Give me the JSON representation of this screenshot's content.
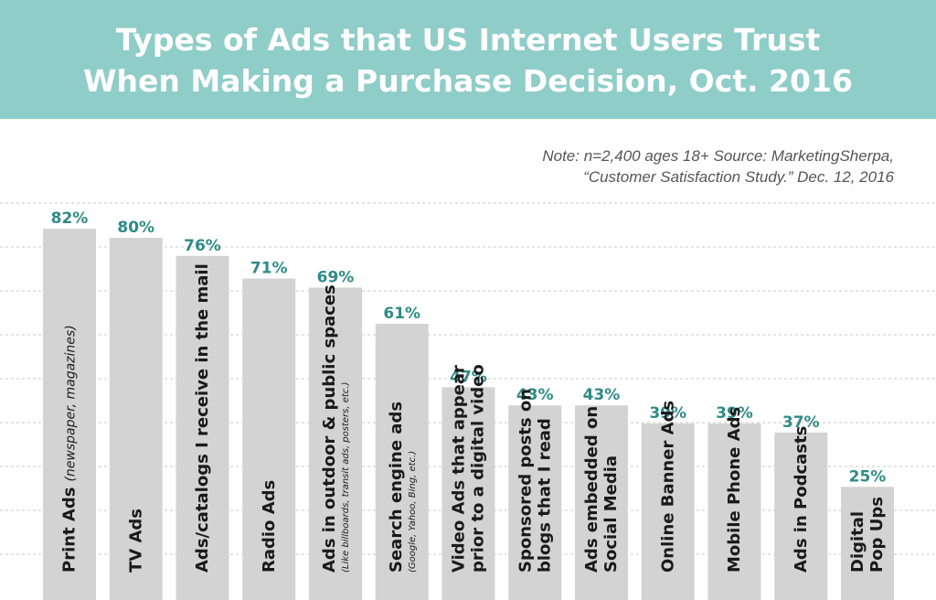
{
  "colors": {
    "header_bg": "#8fcdc9",
    "bar": "#d3d3d3",
    "value_text": "#2e8b86",
    "label_text": "#1a1a1a",
    "grid": "#c8c8c8"
  },
  "note": {
    "line1": "Note: n=2,400 ages 18+ Source: MarketingSherpa,",
    "line2": "“Customer Satisfaction Study.” Dec. 12, 2016"
  },
  "chart_data": {
    "type": "bar",
    "title": "Types of Ads that US Internet Users Trust When Making a Purchase Decision, Oct. 2016",
    "title_lines": [
      "Types of Ads that US Internet Users Trust",
      "When Making a Purchase Decision, Oct. 2016"
    ],
    "grid": true,
    "ylim": [
      0,
      100
    ],
    "categories": [
      "Print Ads (newspaper, magazines)",
      "TV Ads",
      "Ads/catalogs I receive in the mail",
      "Radio Ads",
      "Ads in outdoor & public spaces (Like billboards, transit ads, posters, etc.)",
      "Search engine ads (Google, Yahoo, Bing, etc.)",
      "Video Ads that appear prior to a digital video",
      "Sponsored posts on blogs that I read",
      "Ads embedded on Social Media",
      "Online Banner Ads",
      "Mobile Phone Ads",
      "Ads in Podcasts",
      "Digital Pop Ups"
    ],
    "values": [
      82,
      80,
      76,
      71,
      69,
      61,
      47,
      43,
      43,
      39,
      39,
      37,
      25
    ],
    "value_labels": [
      "82%",
      "80%",
      "76%",
      "71%",
      "69%",
      "61%",
      "47%",
      "43%",
      "43%",
      "39%",
      "39%",
      "37%",
      "25%"
    ],
    "bar_labels": [
      {
        "main": [
          "Print Ads"
        ],
        "sub": [
          "(newspaper, magazines)"
        ],
        "sub_inline": true
      },
      {
        "main": [
          "TV Ads"
        ],
        "sub": []
      },
      {
        "main": [
          "Ads/catalogs I receive in the mail"
        ],
        "sub": []
      },
      {
        "main": [
          "Radio Ads"
        ],
        "sub": []
      },
      {
        "main": [
          "Ads in outdoor & public spaces"
        ],
        "sub": [
          "(Like billboards, transit ads, posters, etc.)"
        ]
      },
      {
        "main": [
          "Search engine ads"
        ],
        "sub": [
          "(Google, Yahoo, Bing, etc.)"
        ]
      },
      {
        "main": [
          "Video Ads that appear",
          "prior to a digital video"
        ],
        "sub": []
      },
      {
        "main": [
          "Sponsored posts on",
          "blogs that I read"
        ],
        "sub": []
      },
      {
        "main": [
          "Ads embedded on",
          "Social Media"
        ],
        "sub": []
      },
      {
        "main": [
          "Online Banner Ads"
        ],
        "sub": []
      },
      {
        "main": [
          "Mobile Phone Ads"
        ],
        "sub": []
      },
      {
        "main": [
          "Ads in Podcasts"
        ],
        "sub": []
      },
      {
        "main": [
          "Digital",
          "Pop Ups"
        ],
        "sub": []
      }
    ]
  }
}
